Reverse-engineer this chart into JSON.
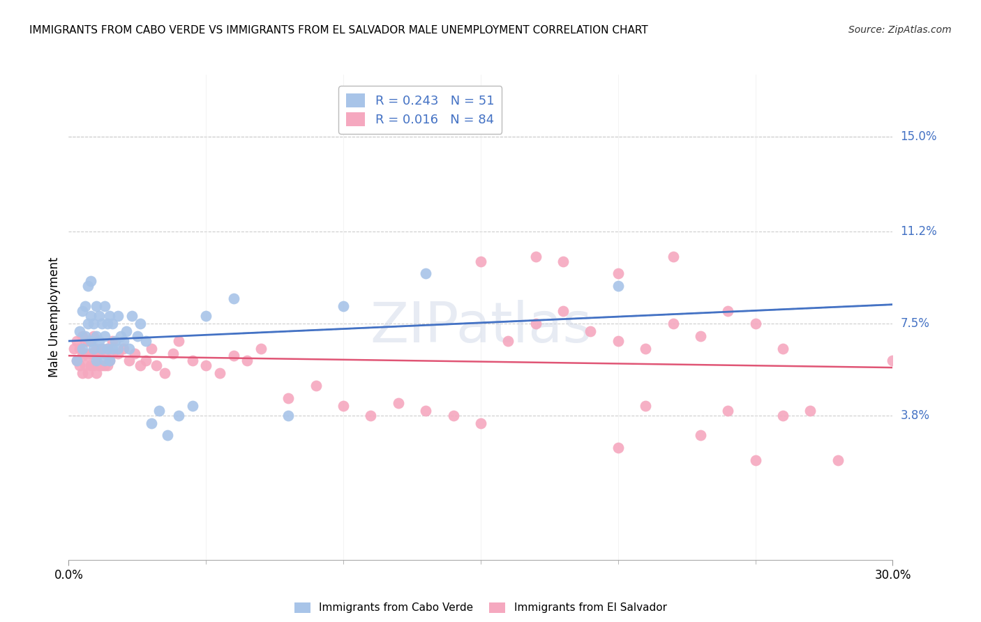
{
  "title": "IMMIGRANTS FROM CABO VERDE VS IMMIGRANTS FROM EL SALVADOR MALE UNEMPLOYMENT CORRELATION CHART",
  "source": "Source: ZipAtlas.com",
  "ylabel": "Male Unemployment",
  "xlim": [
    0.0,
    0.3
  ],
  "ylim": [
    -0.02,
    0.175
  ],
  "ytick_positions": [
    0.038,
    0.075,
    0.112,
    0.15
  ],
  "ytick_labels": [
    "3.8%",
    "7.5%",
    "11.2%",
    "15.0%"
  ],
  "cabo_verde_R": 0.243,
  "cabo_verde_N": 51,
  "el_salvador_R": 0.016,
  "el_salvador_N": 84,
  "cabo_verde_color": "#a8c4e8",
  "el_salvador_color": "#f5a8bf",
  "cabo_verde_line_color": "#4472C4",
  "el_salvador_line_color": "#e05575",
  "cabo_verde_dashed_color": "#a8c4e8",
  "watermark_text": "ZIPatlas",
  "cabo_verde_x": [
    0.003,
    0.004,
    0.005,
    0.005,
    0.006,
    0.006,
    0.007,
    0.007,
    0.008,
    0.008,
    0.008,
    0.009,
    0.009,
    0.01,
    0.01,
    0.01,
    0.011,
    0.011,
    0.012,
    0.012,
    0.013,
    0.013,
    0.013,
    0.014,
    0.014,
    0.015,
    0.015,
    0.016,
    0.016,
    0.017,
    0.018,
    0.018,
    0.019,
    0.02,
    0.021,
    0.022,
    0.023,
    0.025,
    0.026,
    0.028,
    0.03,
    0.033,
    0.036,
    0.04,
    0.045,
    0.05,
    0.06,
    0.08,
    0.1,
    0.13,
    0.2
  ],
  "cabo_verde_y": [
    0.06,
    0.072,
    0.065,
    0.08,
    0.07,
    0.082,
    0.075,
    0.09,
    0.068,
    0.078,
    0.092,
    0.065,
    0.075,
    0.06,
    0.07,
    0.082,
    0.068,
    0.078,
    0.065,
    0.075,
    0.06,
    0.07,
    0.082,
    0.065,
    0.075,
    0.06,
    0.078,
    0.065,
    0.075,
    0.068,
    0.065,
    0.078,
    0.07,
    0.068,
    0.072,
    0.065,
    0.078,
    0.07,
    0.075,
    0.068,
    0.035,
    0.04,
    0.03,
    0.038,
    0.042,
    0.078,
    0.085,
    0.038,
    0.082,
    0.095,
    0.09
  ],
  "el_salvador_x": [
    0.002,
    0.003,
    0.003,
    0.004,
    0.004,
    0.005,
    0.005,
    0.005,
    0.006,
    0.006,
    0.006,
    0.007,
    0.007,
    0.007,
    0.008,
    0.008,
    0.008,
    0.009,
    0.009,
    0.009,
    0.01,
    0.01,
    0.01,
    0.011,
    0.011,
    0.012,
    0.012,
    0.013,
    0.013,
    0.014,
    0.014,
    0.015,
    0.016,
    0.016,
    0.018,
    0.02,
    0.022,
    0.024,
    0.026,
    0.028,
    0.03,
    0.032,
    0.035,
    0.038,
    0.04,
    0.045,
    0.05,
    0.055,
    0.06,
    0.065,
    0.07,
    0.08,
    0.09,
    0.1,
    0.11,
    0.12,
    0.13,
    0.14,
    0.15,
    0.16,
    0.17,
    0.18,
    0.19,
    0.2,
    0.21,
    0.22,
    0.23,
    0.24,
    0.25,
    0.26,
    0.27,
    0.18,
    0.2,
    0.22,
    0.15,
    0.17,
    0.24,
    0.26,
    0.28,
    0.2,
    0.23,
    0.3,
    0.25,
    0.21
  ],
  "el_salvador_y": [
    0.065,
    0.06,
    0.068,
    0.058,
    0.065,
    0.055,
    0.062,
    0.07,
    0.058,
    0.063,
    0.068,
    0.055,
    0.062,
    0.068,
    0.058,
    0.063,
    0.068,
    0.058,
    0.063,
    0.07,
    0.055,
    0.062,
    0.065,
    0.058,
    0.063,
    0.058,
    0.065,
    0.058,
    0.063,
    0.058,
    0.065,
    0.06,
    0.063,
    0.068,
    0.063,
    0.065,
    0.06,
    0.063,
    0.058,
    0.06,
    0.065,
    0.058,
    0.055,
    0.063,
    0.068,
    0.06,
    0.058,
    0.055,
    0.062,
    0.06,
    0.065,
    0.045,
    0.05,
    0.042,
    0.038,
    0.043,
    0.04,
    0.038,
    0.035,
    0.068,
    0.075,
    0.08,
    0.072,
    0.068,
    0.065,
    0.075,
    0.07,
    0.08,
    0.075,
    0.065,
    0.04,
    0.1,
    0.095,
    0.102,
    0.1,
    0.102,
    0.04,
    0.038,
    0.02,
    0.025,
    0.03,
    0.06,
    0.02,
    0.042
  ]
}
